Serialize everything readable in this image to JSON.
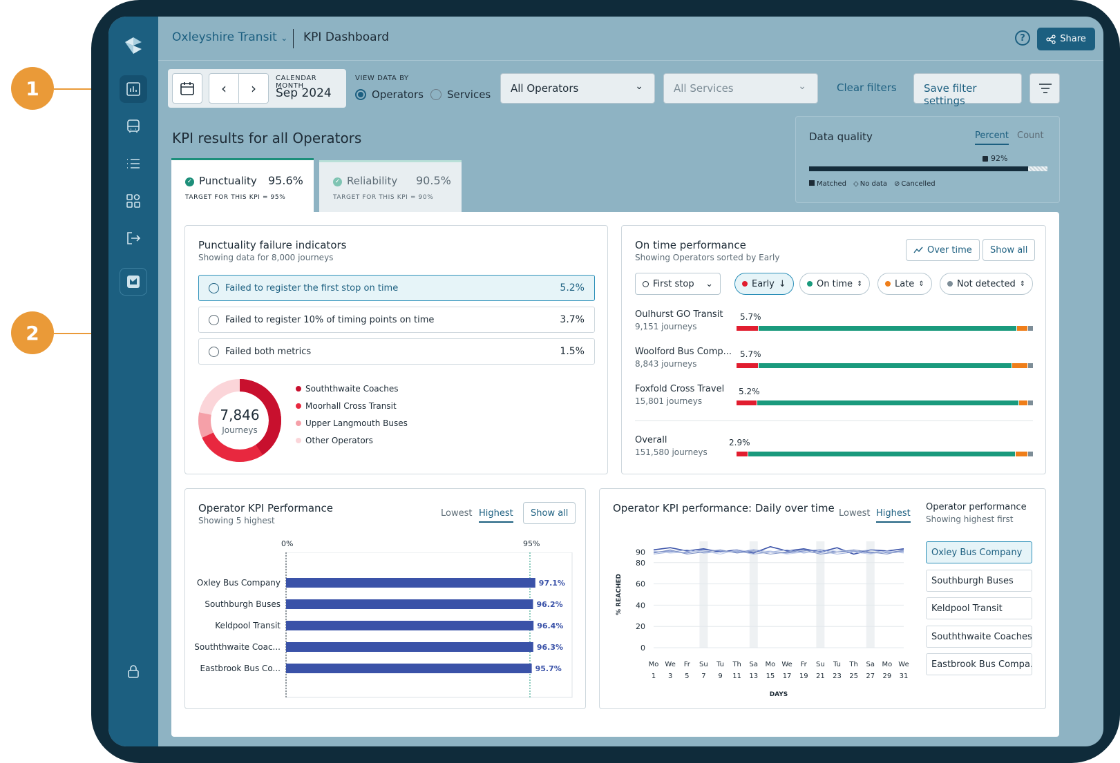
{
  "callouts": [
    "1",
    "2"
  ],
  "header": {
    "brand": "Oxleyshire Transit",
    "page": "KPI Dashboard",
    "share": "Share"
  },
  "filters": {
    "calendar_label": "CALENDAR MONTH",
    "month": "Sep 2024",
    "view_by_label": "VIEW DATA BY",
    "view_options": [
      "Operators",
      "Services"
    ],
    "operators_select": "All Operators",
    "services_select": "All Services",
    "clear": "Clear filters",
    "save": "Save filter settings"
  },
  "data_quality": {
    "title": "Data quality",
    "tabs": [
      "Percent",
      "Count"
    ],
    "value_label": "92%",
    "matched_pct": 92,
    "legend": [
      "Matched",
      "No data",
      "Cancelled"
    ]
  },
  "kpi_heading": "KPI results for all Operators",
  "kpi_tabs": [
    {
      "name": "Punctuality",
      "value": "95.6%",
      "target": "TARGET FOR THIS KPI = 95%"
    },
    {
      "name": "Reliability",
      "value": "90.5%",
      "target": "TARGET FOR THIS KPI = 90%"
    }
  ],
  "failure": {
    "title": "Punctuality failure indicators",
    "subtitle": "Showing data for 8,000 journeys",
    "rows": [
      {
        "label": "Failed to register the first stop on time",
        "value": "5.2%"
      },
      {
        "label": "Failed to register 10% of timing points on time",
        "value": "3.7%"
      },
      {
        "label": "Failed both metrics",
        "value": "1.5%"
      }
    ],
    "donut_value": "7,846",
    "donut_label": "Journeys",
    "legend": [
      "Souththwaite Coaches",
      "Moorhall Cross Transit",
      "Upper Langmouth Buses",
      "Other Operators"
    ],
    "colors": [
      "#c8102e",
      "#e8283f",
      "#f5a0a8",
      "#fbd5d9"
    ]
  },
  "ontime": {
    "title": "On time performance",
    "subtitle": "Showing Operators sorted by Early",
    "over_time": "Over time",
    "show_all": "Show all",
    "first_stop": "First stop",
    "pills": [
      "Early",
      "On time",
      "Late",
      "Not detected"
    ],
    "rows": [
      {
        "name": "Oulhurst GO Transit",
        "journeys": "9,151 journeys",
        "early": "5.7%"
      },
      {
        "name": "Woolford Bus Comp...",
        "journeys": "8,843 journeys",
        "early": "5.7%"
      },
      {
        "name": "Foxfold Cross Travel",
        "journeys": "15,801 journeys",
        "early": "5.2%"
      },
      {
        "name": "Overall",
        "journeys": "151,580 journeys",
        "early": "2.9%"
      }
    ]
  },
  "kpi_perf": {
    "title": "Operator KPI Performance",
    "subtitle": "Showing 5 highest",
    "tabs": [
      "Lowest",
      "Highest"
    ],
    "show_all": "Show all",
    "axis_start": "0%",
    "target_label": "95%"
  },
  "chart_data": [
    {
      "type": "bar",
      "title": "Operator KPI Performance",
      "categories": [
        "Oxley Bus Company",
        "Southburgh Buses",
        "Keldpool Transit",
        "Souththwaite Coac...",
        "Eastbrook Bus Co..."
      ],
      "values": [
        97.1,
        96.2,
        96.4,
        96.3,
        95.7
      ],
      "value_labels": [
        "97.1%",
        "96.2%",
        "96.4%",
        "96.3%",
        "95.7%"
      ],
      "xlim": [
        0,
        100
      ],
      "target": 95
    },
    {
      "type": "line",
      "title": "Operator KPI performance: Daily over time",
      "xlabel": "DAYS",
      "ylabel": "% REACHED",
      "ylim": [
        0,
        100
      ],
      "yticks": [
        0,
        20,
        40,
        60,
        80,
        90
      ],
      "x_days": [
        "Mo",
        "We",
        "Fr",
        "Su",
        "Tu",
        "Th",
        "Sa",
        "Mo",
        "We",
        "Fr",
        "Su",
        "Tu",
        "Th",
        "Sa",
        "Mo",
        "We"
      ],
      "x_dates": [
        "1",
        "3",
        "5",
        "7",
        "9",
        "11",
        "13",
        "15",
        "17",
        "19",
        "21",
        "23",
        "25",
        "27",
        "29",
        "31"
      ],
      "series": [
        {
          "values": [
            92,
            94,
            91,
            93,
            90,
            92,
            89,
            95,
            91,
            93,
            90,
            94,
            88,
            92,
            91,
            93
          ]
        },
        {
          "values": [
            90,
            91,
            89,
            92,
            91,
            90,
            92,
            90,
            89,
            91,
            92,
            90,
            91,
            89,
            90,
            91
          ]
        },
        {
          "values": [
            88,
            90,
            92,
            89,
            90,
            91,
            88,
            90,
            92,
            89,
            91,
            88,
            90,
            92,
            89,
            90
          ]
        },
        {
          "values": [
            91,
            89,
            90,
            91,
            88,
            92,
            90,
            91,
            88,
            90,
            89,
            92,
            90,
            88,
            91,
            89
          ]
        },
        {
          "values": [
            89,
            92,
            88,
            90,
            92,
            89,
            91,
            88,
            90,
            92,
            88,
            90,
            92,
            90,
            88,
            92
          ]
        }
      ]
    }
  ],
  "daily": {
    "title": "Operator KPI performance: Daily over time",
    "tabs": [
      "Lowest",
      "Highest"
    ],
    "side_title": "Operator performance",
    "side_sub": "Showing highest first",
    "operators": [
      "Oxley Bus Company",
      "Southburgh Buses",
      "Keldpool Transit",
      "Souththwaite Coaches",
      "Eastbrook Bus Compa..."
    ]
  }
}
